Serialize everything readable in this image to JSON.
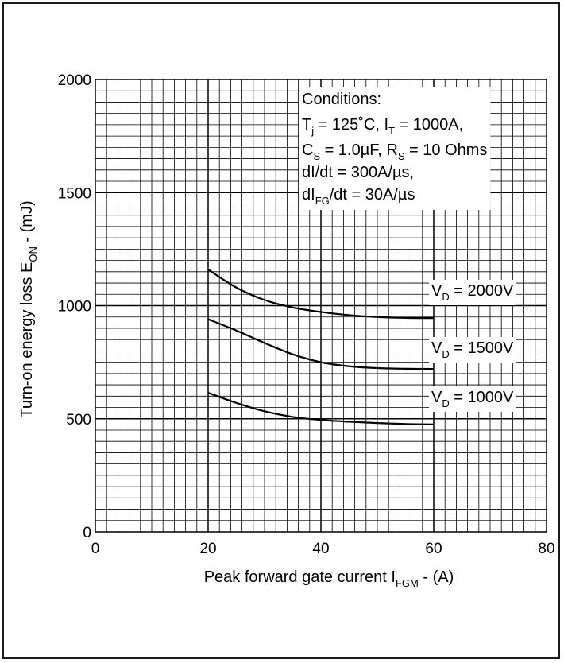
{
  "chart_data": {
    "type": "line",
    "xlabel": {
      "main": "Peak forward gate current I",
      "sub": "FGM",
      "unit": " - (A)"
    },
    "ylabel": {
      "main": "Turn-on energy loss E",
      "sub": "ON",
      "unit": " - (mJ)"
    },
    "xlim": [
      0,
      80
    ],
    "ylim": [
      0,
      2000
    ],
    "x_ticks": [
      0,
      20,
      40,
      60,
      80
    ],
    "y_ticks": [
      0,
      500,
      1000,
      1500,
      2000
    ],
    "x_tick_labels": [
      "0",
      "20",
      "40",
      "60",
      "80"
    ],
    "y_tick_labels": [
      "0",
      "500",
      "1000",
      "1500",
      "2000"
    ],
    "grid": true,
    "conditions": {
      "title": "Conditions:",
      "line1": {
        "a": "T",
        "a_sub": "j",
        "b": " = 125˚C, I",
        "b_sub": "T",
        "c": " = 1000A,"
      },
      "line2": {
        "a": "C",
        "a_sub": "S",
        "b": " = 1.0µF, R",
        "b_sub": "S",
        "c": " = 10 Ohms"
      },
      "line3": "dI/dt = 300A/µs,",
      "line4": {
        "a": "dI",
        "a_sub": "FG",
        "b": "/dt = 30A/µs"
      }
    },
    "series": [
      {
        "name": "V_D = 2000V",
        "label": {
          "main": "V",
          "sub": "D",
          "rest": " = 2000V"
        },
        "x": [
          20,
          25,
          30,
          35,
          40,
          45,
          50,
          55,
          60
        ],
        "y": [
          1160,
          1080,
          1025,
          992,
          972,
          958,
          950,
          946,
          945
        ]
      },
      {
        "name": "V_D = 1500V",
        "label": {
          "main": "V",
          "sub": "D",
          "rest": " = 1500V"
        },
        "x": [
          20,
          25,
          30,
          35,
          40,
          45,
          50,
          55,
          60
        ],
        "y": [
          940,
          890,
          835,
          785,
          750,
          732,
          724,
          721,
          720
        ]
      },
      {
        "name": "V_D = 1000V",
        "label": {
          "main": "V",
          "sub": "D",
          "rest": " = 1000V"
        },
        "x": [
          20,
          25,
          30,
          35,
          40,
          45,
          50,
          55,
          60
        ],
        "y": [
          615,
          570,
          533,
          508,
          495,
          487,
          481,
          477,
          475
        ]
      }
    ]
  }
}
